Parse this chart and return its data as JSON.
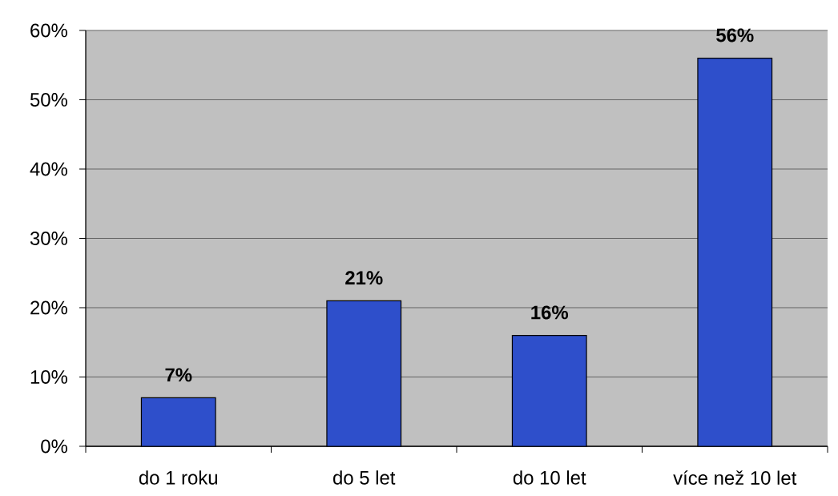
{
  "chart_data": {
    "type": "bar",
    "categories": [
      "do 1 roku",
      "do 5 let",
      "do 10 let",
      "více než 10 let"
    ],
    "values": [
      7,
      21,
      16,
      56
    ],
    "color": "#2e4fcb",
    "ylim": [
      0,
      60
    ],
    "yticks": [
      {
        "value": 0,
        "label": "0%"
      },
      {
        "value": 10,
        "label": "10%"
      },
      {
        "value": 20,
        "label": "20%"
      },
      {
        "value": 30,
        "label": "30%"
      },
      {
        "value": 40,
        "label": "40%"
      },
      {
        "value": 50,
        "label": "50%"
      },
      {
        "value": 60,
        "label": "60%"
      }
    ],
    "grid": "y",
    "value_labels": [
      "7%",
      "21%",
      "16%",
      "56%"
    ]
  }
}
